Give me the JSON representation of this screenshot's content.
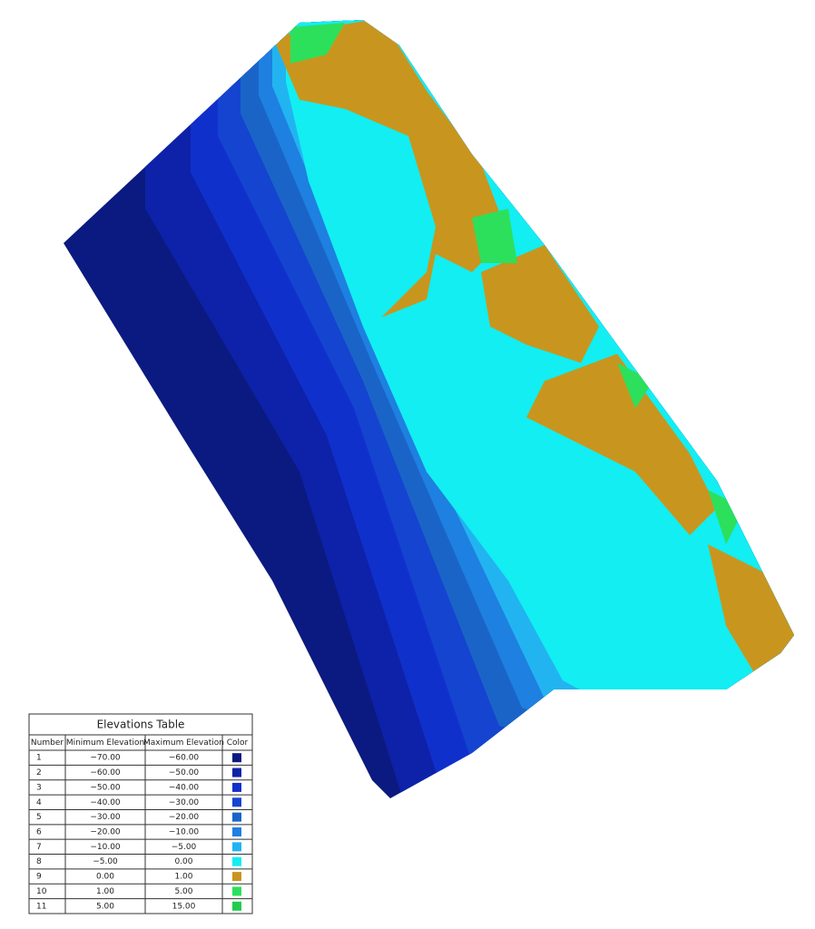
{
  "table": {
    "title": "Elevations Table",
    "headers": [
      "Number",
      "Minimum Elevation",
      "Maximum Elevation",
      "Color"
    ],
    "rows": [
      [
        "1",
        "−70.00",
        "−60.00"
      ],
      [
        "2",
        "−60.00",
        "−50.00"
      ],
      [
        "3",
        "−50.00",
        "−40.00"
      ],
      [
        "4",
        "−40.00",
        "−30.00"
      ],
      [
        "5",
        "−30.00",
        "−20.00"
      ],
      [
        "6",
        "−20.00",
        "−10.00"
      ],
      [
        "7",
        "−10.00",
        "−5.00"
      ],
      [
        "8",
        "−5.00",
        "0.00"
      ],
      [
        "9",
        "0.00",
        "1.00"
      ],
      [
        "10",
        "1.00",
        "5.00"
      ],
      [
        "11",
        "5.00",
        "15.00"
      ]
    ],
    "colors": [
      "#0b1a80",
      "#0d22a8",
      "#1030cc",
      "#1444d0",
      "#1a64c8",
      "#1e80e0",
      "#22b4f0",
      "#12eef2",
      "#c8961e",
      "#2ce05c",
      "#22cc4c"
    ]
  }
}
